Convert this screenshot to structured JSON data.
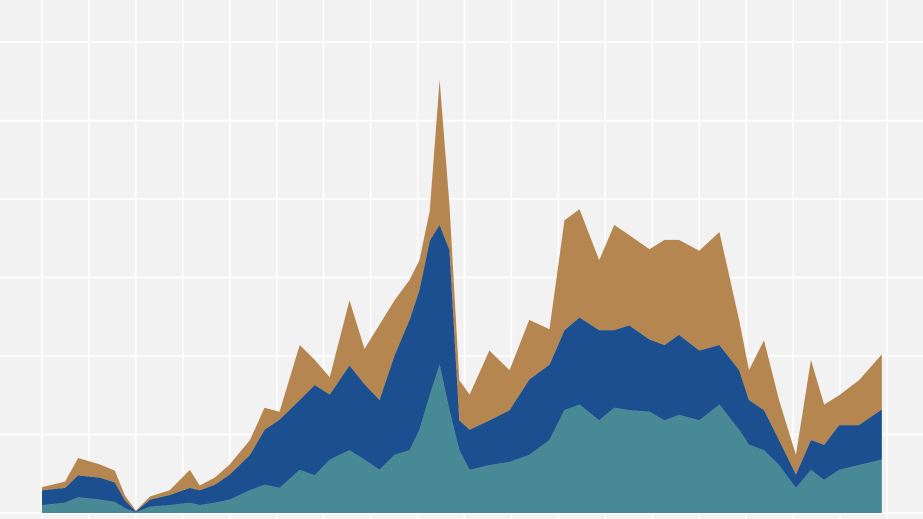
{
  "chart_data": {
    "type": "stacked_area",
    "x": [
      0,
      0.49,
      0.77,
      1.23,
      1.55,
      1.77,
      2.0,
      2.3,
      2.72,
      3.15,
      3.36,
      3.68,
      4.0,
      4.43,
      4.74,
      5.06,
      5.49,
      5.81,
      6.13,
      6.55,
      6.87,
      7.19,
      7.51,
      7.83,
      8.04,
      8.26,
      8.47,
      8.68,
      8.89,
      9.11,
      9.53,
      9.96,
      10.38,
      10.81,
      11.13,
      11.45,
      11.87,
      12.19,
      12.51,
      12.94,
      13.26,
      13.57,
      14.0,
      14.43,
      14.85,
      15.06,
      15.38,
      15.7,
      16.06,
      16.38,
      16.66,
      16.98,
      17.4,
      17.89
    ],
    "series": [
      {
        "color": "#478a96",
        "values": [
          0.1,
          0.13,
          0.2,
          0.17,
          0.14,
          0.06,
          0.01,
          0.08,
          0.1,
          0.13,
          0.1,
          0.13,
          0.17,
          0.29,
          0.36,
          0.32,
          0.55,
          0.48,
          0.68,
          0.8,
          0.68,
          0.55,
          0.74,
          0.8,
          1.06,
          1.5,
          1.89,
          1.31,
          0.8,
          0.55,
          0.61,
          0.65,
          0.74,
          0.93,
          1.31,
          1.38,
          1.18,
          1.34,
          1.31,
          1.29,
          1.18,
          1.25,
          1.18,
          1.38,
          1.06,
          0.87,
          0.8,
          0.61,
          0.32,
          0.55,
          0.42,
          0.55,
          0.61,
          0.68
        ]
      },
      {
        "color": "#1c4f8f",
        "values": [
          0.19,
          0.19,
          0.28,
          0.28,
          0.25,
          0.1,
          0.01,
          0.09,
          0.13,
          0.19,
          0.19,
          0.23,
          0.32,
          0.45,
          0.7,
          0.87,
          0.89,
          1.15,
          0.83,
          1.08,
          0.96,
          0.89,
          1.27,
          1.66,
          1.78,
          1.97,
          1.78,
          2.04,
          0.38,
          0.51,
          0.57,
          0.66,
          0.96,
          0.96,
          1.02,
          1.11,
          1.15,
          0.99,
          1.08,
          0.92,
          0.96,
          1.02,
          0.89,
          0.76,
          0.76,
          0.57,
          0.51,
          0.32,
          0.17,
          0.38,
          0.45,
          0.57,
          0.51,
          0.64
        ]
      },
      {
        "color": "#b5864f",
        "values": [
          0.04,
          0.08,
          0.22,
          0.17,
          0.15,
          0.06,
          0.01,
          0.04,
          0.06,
          0.23,
          0.06,
          0.09,
          0.13,
          0.19,
          0.28,
          0.1,
          0.7,
          0.32,
          0.22,
          0.83,
          0.45,
          0.96,
          0.7,
          0.51,
          0.38,
          0.38,
          1.85,
          0.57,
          0.51,
          0.45,
          0.89,
          0.51,
          0.76,
          0.45,
          1.4,
          1.38,
          0.89,
          1.34,
          1.15,
          1.15,
          1.34,
          1.21,
          1.27,
          1.44,
          0.64,
          0.38,
          0.89,
          0.51,
          0.25,
          1.02,
          0.51,
          0.38,
          0.57,
          0.7
        ]
      }
    ],
    "xlim": [
      0,
      18
    ],
    "xticks": [
      0,
      1,
      2,
      3,
      4,
      5,
      6,
      7,
      8,
      9,
      10,
      11,
      12,
      13,
      14,
      15,
      16,
      17,
      18
    ],
    "ylim": [
      0,
      6
    ],
    "yticks": [
      0,
      1,
      2,
      3,
      4,
      5,
      6
    ],
    "grid": true
  }
}
